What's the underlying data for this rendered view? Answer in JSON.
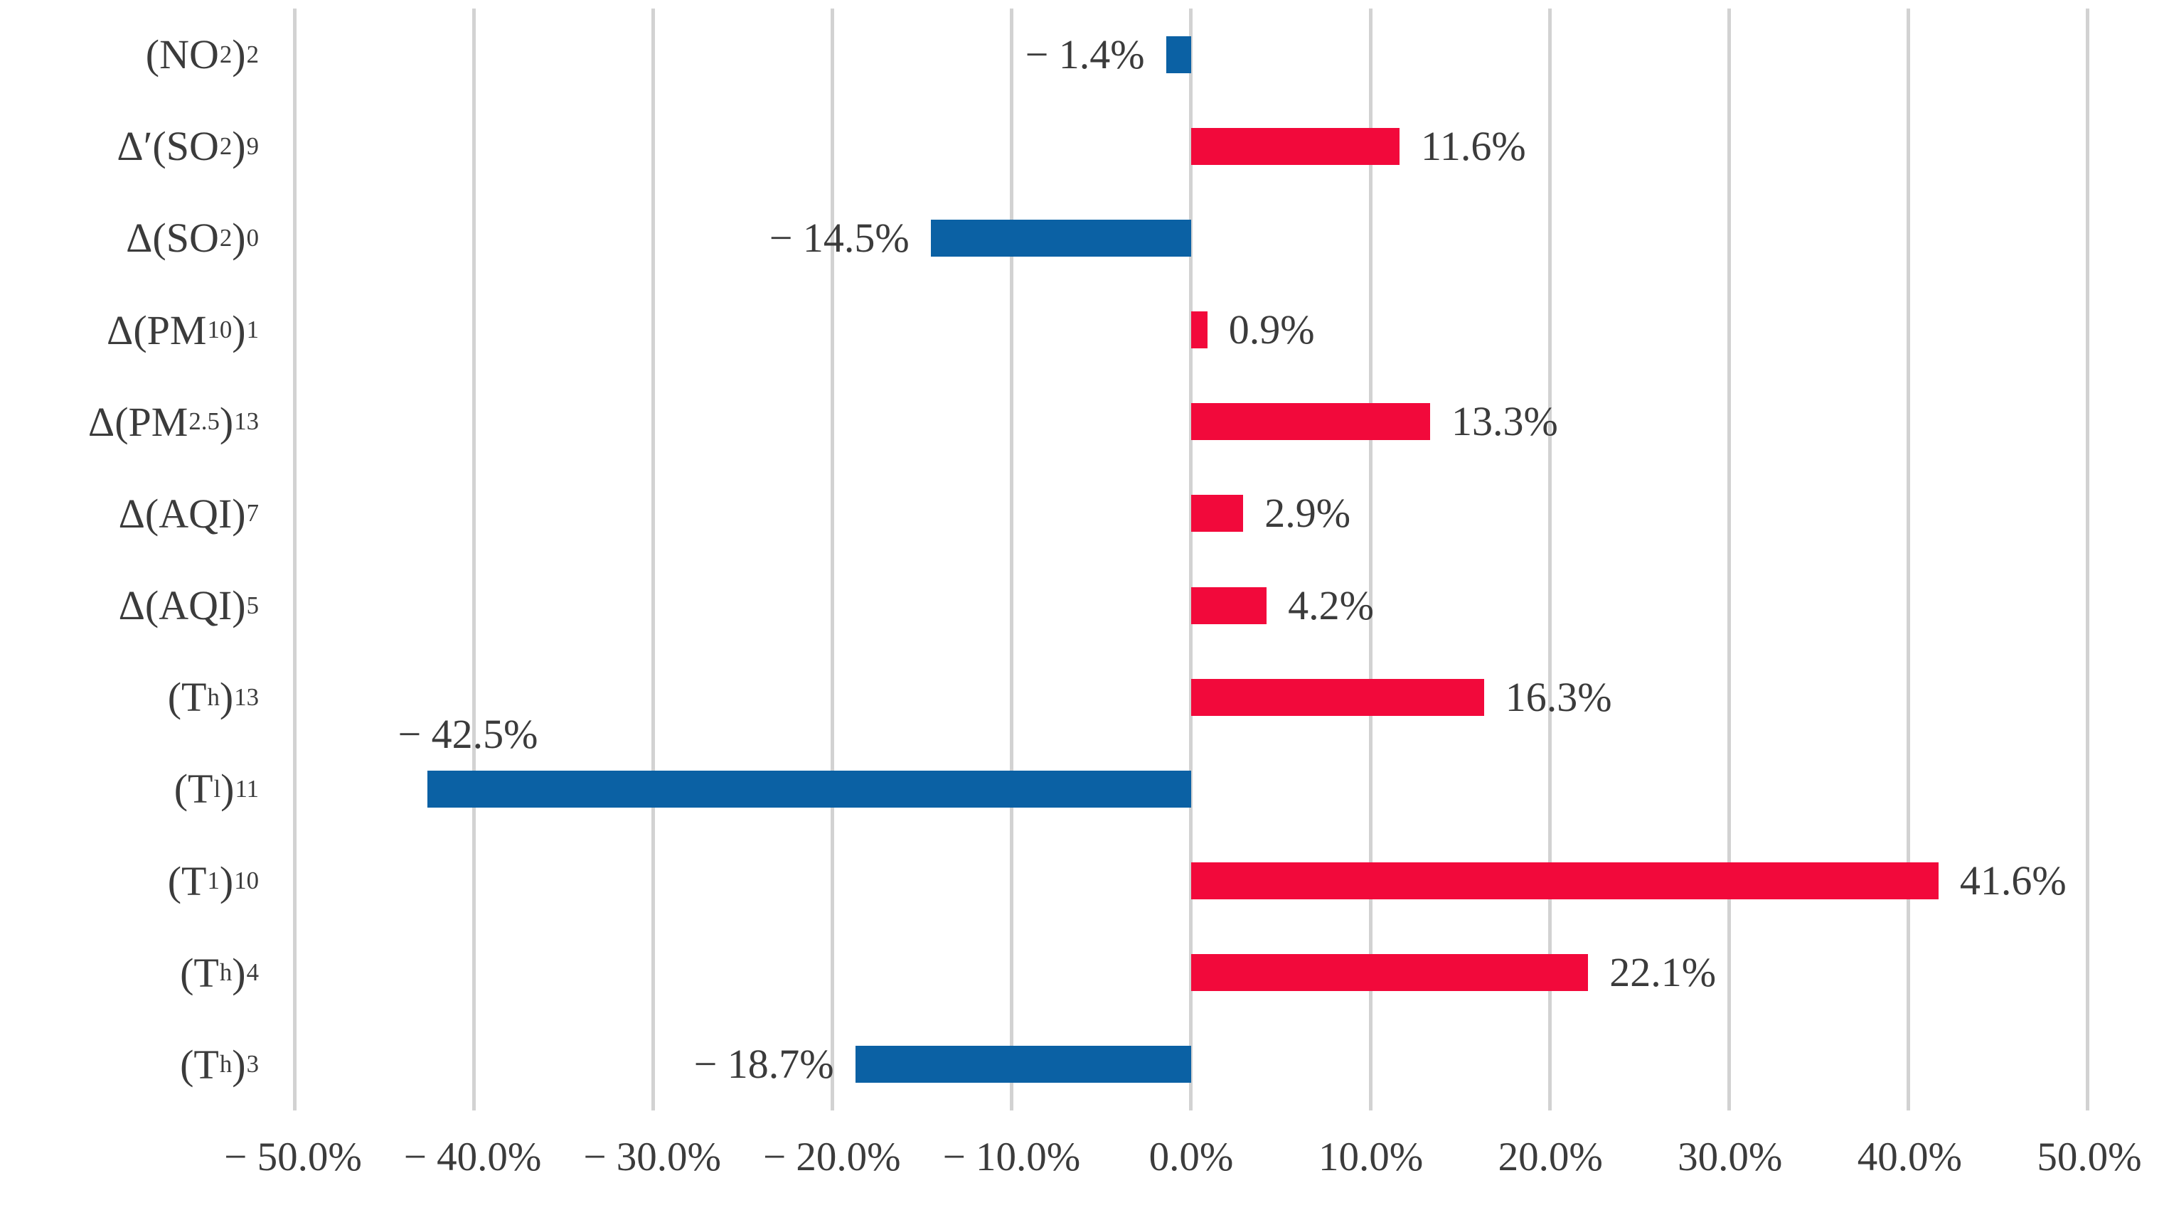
{
  "chart_data": {
    "type": "bar",
    "orientation": "horizontal",
    "title": "",
    "xlabel": "",
    "ylabel": "",
    "grid": "vertical",
    "legend_position": "none",
    "xlim": [
      -50,
      50
    ],
    "x_tick_step": 10,
    "x_ticks": [
      "− 50.0%",
      "− 40.0%",
      "− 30.0%",
      "− 20.0%",
      "− 10.0%",
      "0.0%",
      "10.0%",
      "20.0%",
      "30.0%",
      "40.0%",
      "50.0%"
    ],
    "categories_plain": [
      "(NO2)2",
      "Δ′(SO2)9",
      "Δ(SO2)0",
      "Δ(PM10)1",
      "Δ(PM2.5)13",
      "Δ(AQI)7",
      "Δ(AQI)5",
      "(Th)13",
      "(Tl)11",
      "(T1)10",
      "(Th)4",
      "(Th)3"
    ],
    "categories_segments": [
      [
        {
          "t": "(NO"
        },
        {
          "t": "2",
          "s": true
        },
        {
          "t": ")"
        },
        {
          "t": "2",
          "s": true
        }
      ],
      [
        {
          "t": "Δ′(SO"
        },
        {
          "t": "2",
          "s": true
        },
        {
          "t": ")"
        },
        {
          "t": "9",
          "s": true
        }
      ],
      [
        {
          "t": "Δ(SO"
        },
        {
          "t": "2",
          "s": true
        },
        {
          "t": ")"
        },
        {
          "t": "0",
          "s": true
        }
      ],
      [
        {
          "t": "Δ(PM"
        },
        {
          "t": "10",
          "s": true
        },
        {
          "t": ")"
        },
        {
          "t": "1",
          "s": true
        }
      ],
      [
        {
          "t": "Δ(PM"
        },
        {
          "t": "2.5",
          "s": true
        },
        {
          "t": ")"
        },
        {
          "t": "13",
          "s": true
        }
      ],
      [
        {
          "t": "Δ(AQI)"
        },
        {
          "t": "7",
          "s": true
        }
      ],
      [
        {
          "t": "Δ(AQI)"
        },
        {
          "t": "5",
          "s": true
        }
      ],
      [
        {
          "t": "(T"
        },
        {
          "t": "h",
          "s": true
        },
        {
          "t": ")"
        },
        {
          "t": "13",
          "s": true
        }
      ],
      [
        {
          "t": "(T"
        },
        {
          "t": "l",
          "s": true
        },
        {
          "t": ")"
        },
        {
          "t": "11",
          "s": true
        }
      ],
      [
        {
          "t": "(T"
        },
        {
          "t": "1",
          "s": true
        },
        {
          "t": ")"
        },
        {
          "t": "10",
          "s": true
        }
      ],
      [
        {
          "t": "(T"
        },
        {
          "t": "h",
          "s": true
        },
        {
          "t": ")"
        },
        {
          "t": "4",
          "s": true
        }
      ],
      [
        {
          "t": "(T"
        },
        {
          "t": "h",
          "s": true
        },
        {
          "t": ")"
        },
        {
          "t": "3",
          "s": true
        }
      ]
    ],
    "values": [
      -1.4,
      11.6,
      -14.5,
      0.9,
      13.3,
      2.9,
      4.2,
      16.3,
      -42.5,
      41.6,
      22.1,
      -18.7
    ],
    "value_labels": [
      "− 1.4%",
      "11.6%",
      "− 14.5%",
      "0.9%",
      "13.3%",
      "2.9%",
      "4.2%",
      "16.3%",
      "− 42.5%",
      "41.6%",
      "22.1%",
      "− 18.7%"
    ],
    "value_label_positions": [
      "left",
      "right",
      "left",
      "right",
      "right",
      "right",
      "right",
      "right",
      "above-left",
      "right",
      "right",
      "left"
    ],
    "colors": {
      "positive_bar": "#f2093b",
      "negative_bar": "#0b61a4",
      "gridline": "#d2d2d2",
      "text": "#3b3b3b",
      "background": "#ffffff"
    }
  }
}
